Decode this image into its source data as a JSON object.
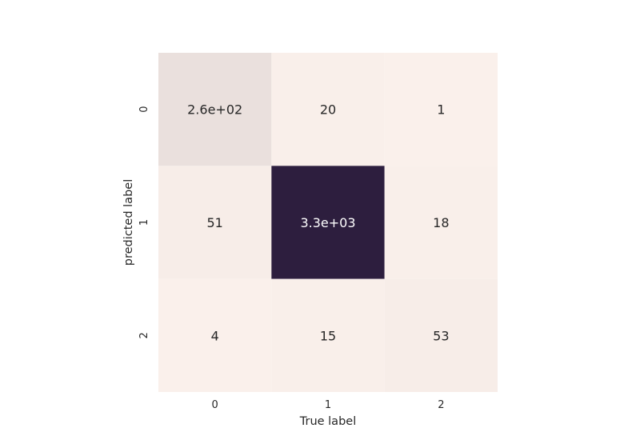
{
  "chart_data": {
    "type": "heatmap",
    "title": "",
    "xlabel": "True label",
    "ylabel": "predicted label",
    "x_categories": [
      "0",
      "1",
      "2"
    ],
    "y_categories": [
      "0",
      "1",
      "2"
    ],
    "values": [
      [
        260,
        20,
        1
      ],
      [
        51,
        3300,
        18
      ],
      [
        4,
        15,
        53
      ]
    ],
    "cell_labels": [
      [
        "2.6e+02",
        "20",
        "1"
      ],
      [
        "51",
        "3.3e+03",
        "18"
      ],
      [
        "4",
        "15",
        "53"
      ]
    ],
    "colorbar": false,
    "colormap": {
      "low": "#faf0eb",
      "high": "#2d1e3e"
    }
  }
}
